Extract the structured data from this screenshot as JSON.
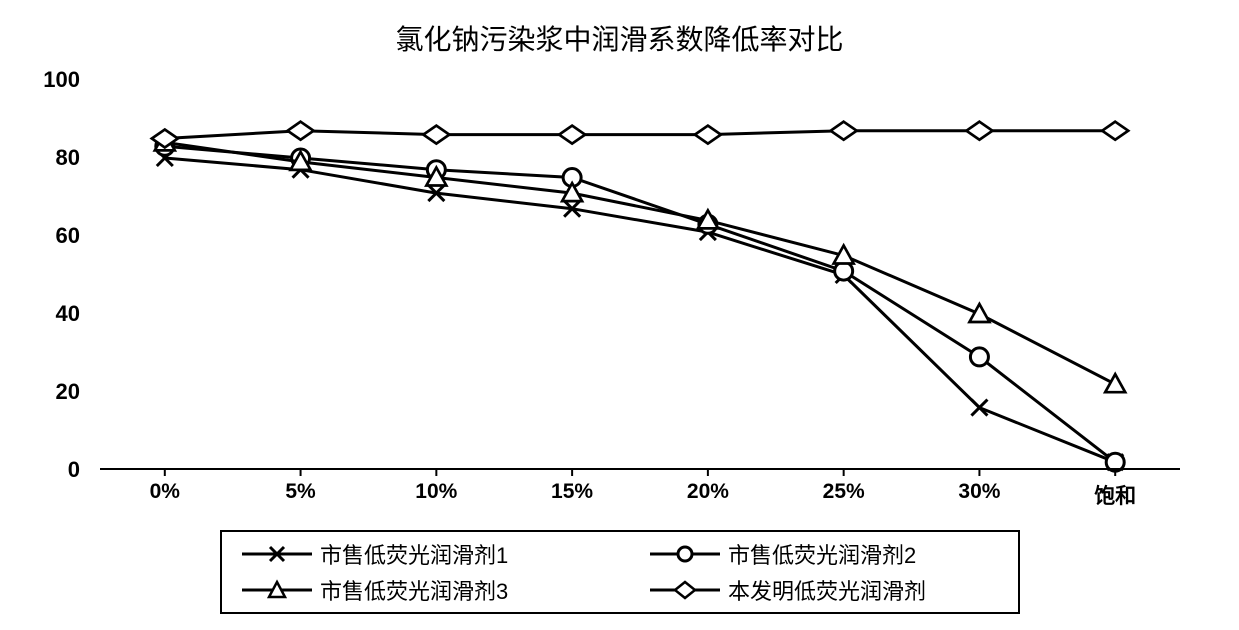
{
  "chart": {
    "type": "line",
    "title": "氯化钠污染浆中润滑系数降低率对比",
    "title_fontsize": 28,
    "background_color": "#ffffff",
    "text_color": "#000000",
    "line_color": "#000000",
    "line_width": 3,
    "ylim": [
      0,
      100
    ],
    "ytick_step": 20,
    "yticks": [
      0,
      20,
      40,
      60,
      80,
      100
    ],
    "xlabels": [
      "0%",
      "5%",
      "10%",
      "15%",
      "20%",
      "25%",
      "30%",
      "饱和"
    ],
    "series": [
      {
        "name": "市售低荧光润滑剂1",
        "marker": "x",
        "data": [
          80,
          77,
          71,
          67,
          61,
          50,
          16,
          2
        ]
      },
      {
        "name": "市售低荧光润滑剂2",
        "marker": "circle",
        "data": [
          83,
          80,
          77,
          75,
          63,
          51,
          29,
          2
        ]
      },
      {
        "name": "市售低荧光润滑剂3",
        "marker": "triangle",
        "data": [
          84,
          79,
          75,
          71,
          64,
          55,
          40,
          22
        ]
      },
      {
        "name": "本发明低荧光润滑剂",
        "marker": "diamond",
        "data": [
          85,
          87,
          86,
          86,
          86,
          87,
          87,
          87
        ]
      }
    ],
    "marker_size": 10,
    "legend": {
      "items": [
        "市售低荧光润滑剂1",
        "市售低荧光润滑剂2",
        "市售低荧光润滑剂3",
        "本发明低荧光润滑剂"
      ]
    }
  }
}
